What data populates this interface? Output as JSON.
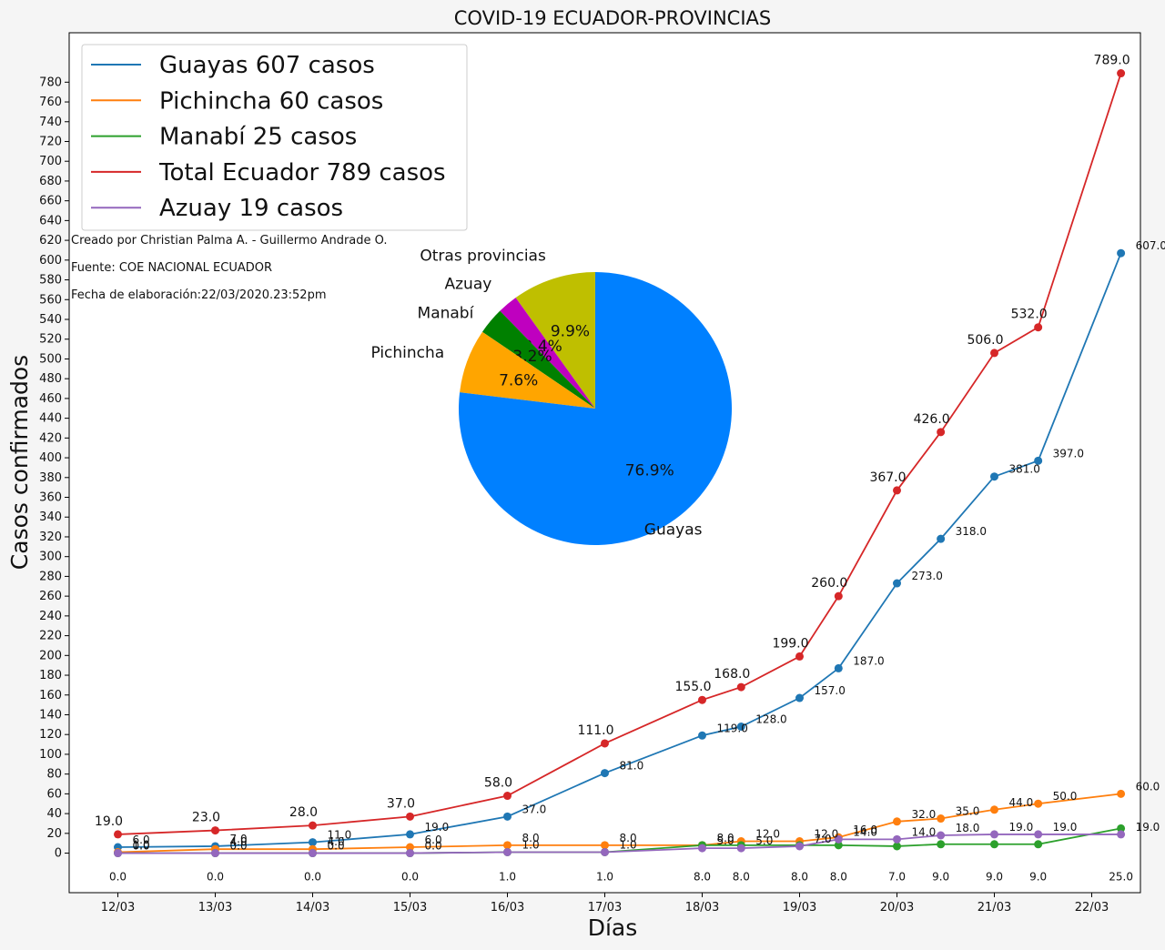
{
  "chart_data": {
    "type": "line",
    "title": "COVID-19 ECUADOR-PROVINCIAS",
    "xlabel": "Días",
    "ylabel": "Casos confirmados",
    "x_ticks": [
      "12/03",
      "13/03",
      "14/03",
      "15/03",
      "16/03",
      "17/03",
      "18/03",
      "19/03",
      "20/03",
      "21/03",
      "22/03"
    ],
    "y_ticks": [
      0,
      20,
      40,
      60,
      80,
      100,
      120,
      140,
      160,
      180,
      200,
      220,
      240,
      260,
      280,
      300,
      320,
      340,
      360,
      380,
      400,
      420,
      440,
      460,
      480,
      500,
      520,
      540,
      560,
      580,
      600,
      620,
      640,
      660,
      680,
      700,
      720,
      740,
      760,
      780
    ],
    "xlim": [
      -0.5,
      10.5
    ],
    "ylim": [
      -40,
      830
    ],
    "x": [
      0,
      1,
      2,
      3,
      4,
      5,
      6,
      6.4,
      7,
      7.4,
      8,
      8.45,
      9,
      9.45,
      10.3
    ],
    "series": [
      {
        "name": "Guayas 607 casos",
        "color": "#1f77b4",
        "values": [
          6,
          7,
          11,
          19,
          37,
          81,
          119,
          128,
          157,
          187,
          273,
          318,
          381,
          397,
          607
        ],
        "labels": [
          "6.0",
          "7.0",
          "11.0",
          "19.0",
          "37.0",
          "81.0",
          "119.0",
          "128.0",
          "157.0",
          "187.0",
          "273.0",
          "318.0",
          "381.0",
          "397.0",
          "607.0"
        ]
      },
      {
        "name": "Pichincha 60 casos",
        "color": "#ff7f0e",
        "values": [
          1,
          4,
          4,
          6,
          8,
          8,
          8,
          12,
          12,
          16,
          32,
          35,
          44,
          50,
          60
        ],
        "labels": [
          "1.0",
          "4.0",
          "4.0",
          "6.0",
          "8.0",
          "8.0",
          "8.0",
          "12.0",
          "12.0",
          "16.0",
          "32.0",
          "35.0",
          "44.0",
          "50.0",
          "60.0"
        ]
      },
      {
        "name": "Manabí 25 casos",
        "color": "#2ca02c",
        "values": [
          0,
          0,
          0,
          0,
          1,
          1,
          8,
          8,
          8,
          8,
          7,
          9,
          9,
          9,
          25
        ],
        "labels": [
          "0.0",
          "0.0",
          "0.0",
          "0.0",
          "1.0",
          "1.0",
          "8.0",
          "8.0",
          "8.0",
          "8.0",
          "7.0",
          "9.0",
          "9.0",
          "9.0",
          "25.0"
        ]
      },
      {
        "name": "Total Ecuador 789 casos",
        "color": "#d62728",
        "values": [
          19,
          23,
          28,
          37,
          58,
          111,
          155,
          168,
          199,
          260,
          367,
          426,
          506,
          532,
          789
        ],
        "labels": [
          "19.0",
          "23.0",
          "28.0",
          "37.0",
          "58.0",
          "111.0",
          "155.0",
          "168.0",
          "199.0",
          "260.0",
          "367.0",
          "426.0",
          "506.0",
          "532.0",
          "789.0"
        ]
      },
      {
        "name": "Azuay 19 casos",
        "color": "#9467bd",
        "values": [
          0,
          0,
          0,
          0,
          1,
          1,
          5,
          5,
          7,
          14,
          14,
          18,
          19,
          19,
          19
        ],
        "labels": [
          "0.0",
          "0.0",
          "0.0",
          "0.0",
          "1.0",
          "1.0",
          "5.0",
          "5.0",
          "7.0",
          "14.0",
          "14.0",
          "18.0",
          "19.0",
          "19.0",
          "19.0"
        ]
      }
    ],
    "legend_position": "top-left",
    "grid": false,
    "pie": {
      "type": "pie",
      "slices": [
        {
          "label": "Otras provincias",
          "pct_label": "9.9%",
          "value": 9.9,
          "color": "#bfbf00"
        },
        {
          "label": "Azuay",
          "pct_label": "2.4%",
          "value": 2.4,
          "color": "#bf00bf"
        },
        {
          "label": "Manabí",
          "pct_label": "3.2%",
          "value": 3.2,
          "color": "#008000"
        },
        {
          "label": "Pichincha",
          "pct_label": "7.6%",
          "value": 7.6,
          "color": "#ffa500"
        },
        {
          "label": "Guayas",
          "pct_label": "76.9%",
          "value": 76.9,
          "color": "#0080ff"
        }
      ]
    },
    "annotations": [
      "Creado por Christian Palma A. - Guillermo Andrade O.",
      "Fuente: COE NACIONAL ECUADOR",
      "Fecha de elaboración:22/03/2020.23:52pm"
    ]
  }
}
